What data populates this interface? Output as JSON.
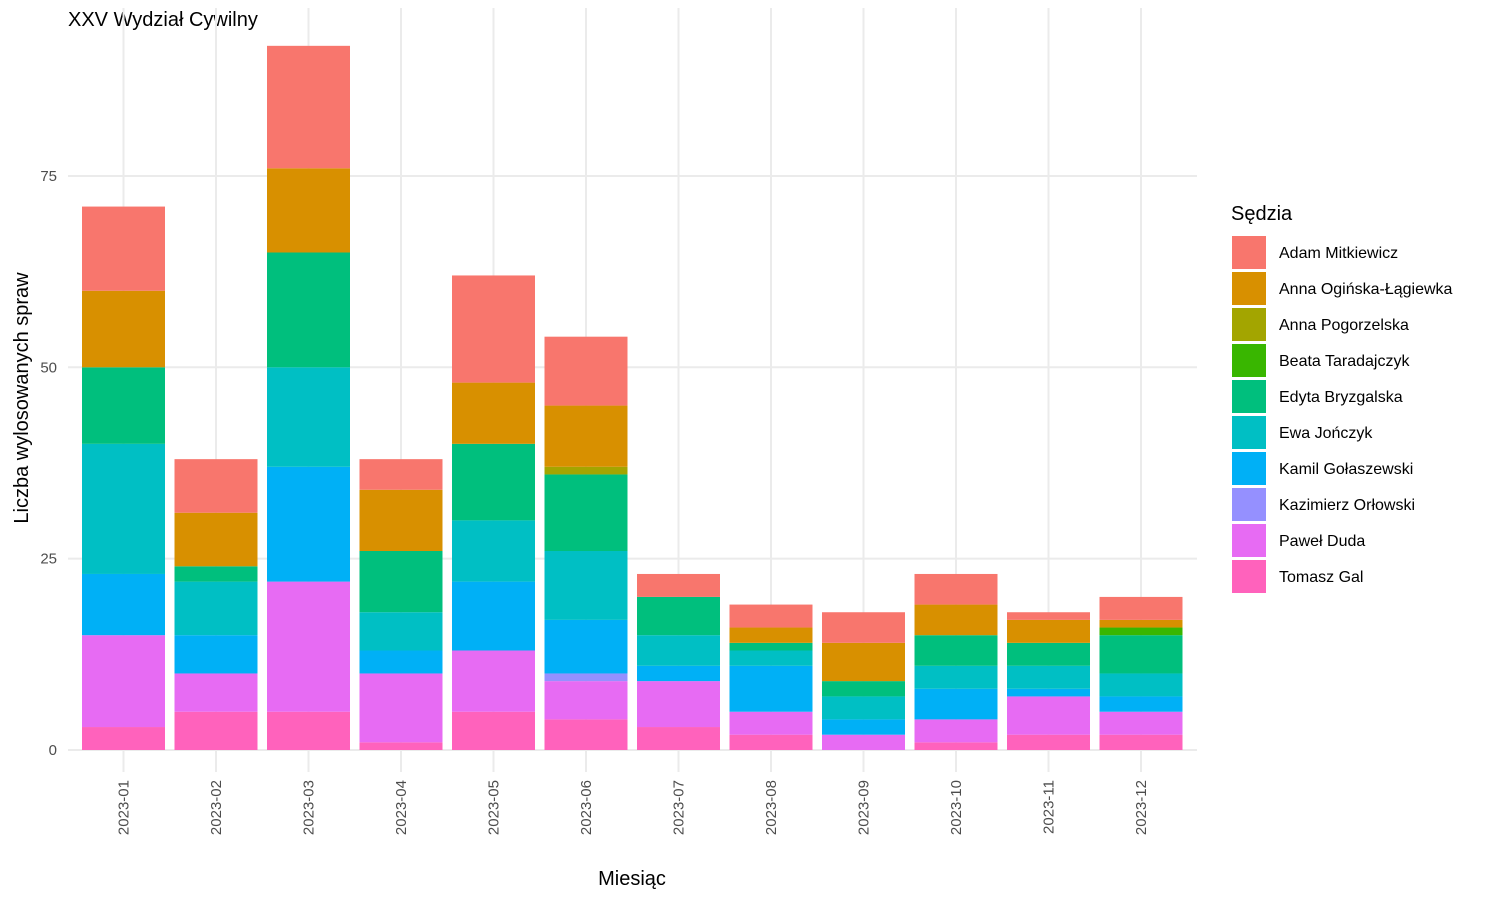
{
  "chart_data": {
    "type": "bar",
    "stacked": true,
    "title": "XXV Wydział Cywilny",
    "xlabel": "Miesiąc",
    "ylabel": "Liczba wylosowanych spraw",
    "ylim": [
      0,
      94
    ],
    "yticks": [
      "0",
      "25",
      "50",
      "75"
    ],
    "grid": true,
    "legend_position": "right",
    "legend_title": "Sędzia",
    "categories": [
      "2023-01",
      "2023-02",
      "2023-03",
      "2023-04",
      "2023-05",
      "2023-06",
      "2023-07",
      "2023-08",
      "2023-09",
      "2023-10",
      "2023-11",
      "2023-12"
    ],
    "series": [
      {
        "name": "Adam Mitkiewicz",
        "color": "#F8766D",
        "values": [
          11,
          7,
          16,
          4,
          14,
          9,
          3,
          3,
          4,
          4,
          1,
          3
        ]
      },
      {
        "name": "Anna Ogińska-Łągiewka",
        "color": "#D89000",
        "values": [
          10,
          7,
          11,
          8,
          8,
          8,
          0,
          2,
          5,
          4,
          3,
          1
        ]
      },
      {
        "name": "Anna Pogorzelska",
        "color": "#A3A500",
        "values": [
          0,
          0,
          0,
          0,
          0,
          1,
          0,
          0,
          0,
          0,
          0,
          0
        ]
      },
      {
        "name": "Beata Taradajczyk",
        "color": "#39B600",
        "values": [
          0,
          0,
          0,
          0,
          0,
          0,
          0,
          0,
          0,
          0,
          0,
          1
        ]
      },
      {
        "name": "Edyta Bryzgalska",
        "color": "#00BF7D",
        "values": [
          10,
          2,
          15,
          8,
          10,
          10,
          5,
          1,
          2,
          4,
          3,
          5
        ]
      },
      {
        "name": "Ewa Jończyk",
        "color": "#00BFC4",
        "values": [
          17,
          7,
          13,
          5,
          8,
          9,
          4,
          2,
          3,
          3,
          3,
          3
        ]
      },
      {
        "name": "Kamil Gołaszewski",
        "color": "#00B0F6",
        "values": [
          8,
          5,
          15,
          3,
          9,
          7,
          2,
          6,
          2,
          4,
          1,
          2
        ]
      },
      {
        "name": "Kazimierz Orłowski",
        "color": "#9590FF",
        "values": [
          0,
          0,
          0,
          0,
          0,
          1,
          0,
          0,
          0,
          0,
          0,
          0
        ]
      },
      {
        "name": "Paweł Duda",
        "color": "#E76BF3",
        "values": [
          12,
          5,
          17,
          9,
          8,
          5,
          6,
          3,
          2,
          3,
          5,
          3
        ]
      },
      {
        "name": "Tomasz Gal",
        "color": "#FF62BC",
        "values": [
          3,
          5,
          5,
          1,
          5,
          4,
          3,
          2,
          0,
          1,
          2,
          2
        ]
      }
    ]
  }
}
